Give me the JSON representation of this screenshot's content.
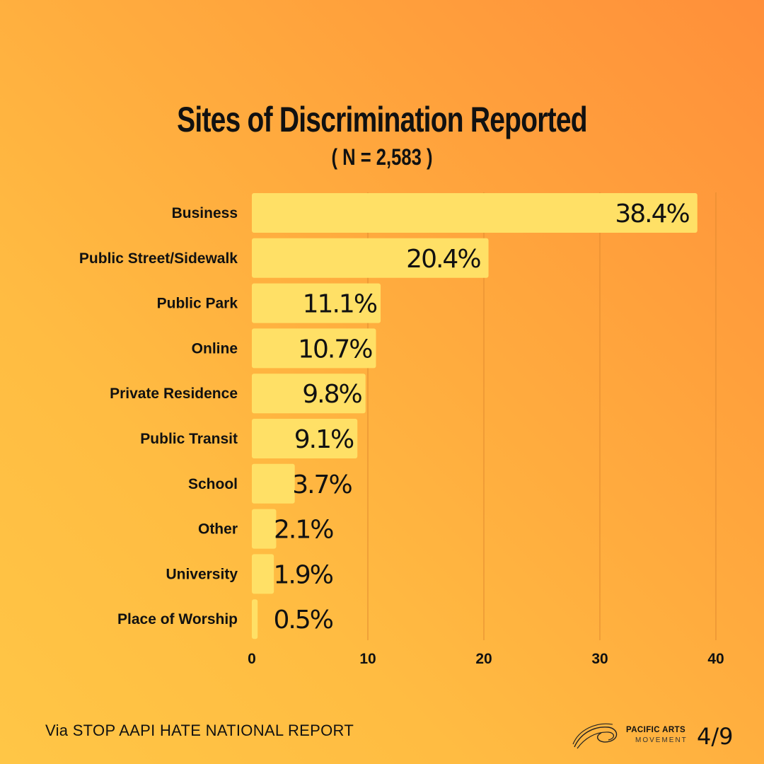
{
  "header": {
    "title": "Sites of Discrimination Reported",
    "subtitle": "( N = 2,583 )"
  },
  "chart_data": {
    "type": "bar",
    "orientation": "horizontal",
    "title": "Sites of Discrimination Reported",
    "subtitle": "( N = 2,583 )",
    "categories": [
      "Business",
      "Public Street/Sidewalk",
      "Public Park",
      "Online",
      "Private Residence",
      "Public Transit",
      "School",
      "Other",
      "University",
      "Place of Worship"
    ],
    "values": [
      38.4,
      20.4,
      11.1,
      10.7,
      9.8,
      9.1,
      3.7,
      2.1,
      1.9,
      0.5
    ],
    "value_labels": [
      "38.4%",
      "20.4%",
      "11.1%",
      "10.7%",
      "9.8%",
      "9.1%",
      "3.7%",
      "2.1%",
      "1.9%",
      "0.5%"
    ],
    "xlim": [
      0,
      40
    ],
    "xticks": [
      0,
      10,
      20,
      30,
      40
    ],
    "xlabel": "",
    "ylabel": "",
    "grid": true,
    "bar_color": "#FFE066"
  },
  "footer": {
    "source": "Via STOP AAPI HATE NATIONAL REPORT",
    "logo_line1": "PACIFIC ARTS",
    "logo_line2": "MOVEMENT",
    "page": "4/9"
  }
}
